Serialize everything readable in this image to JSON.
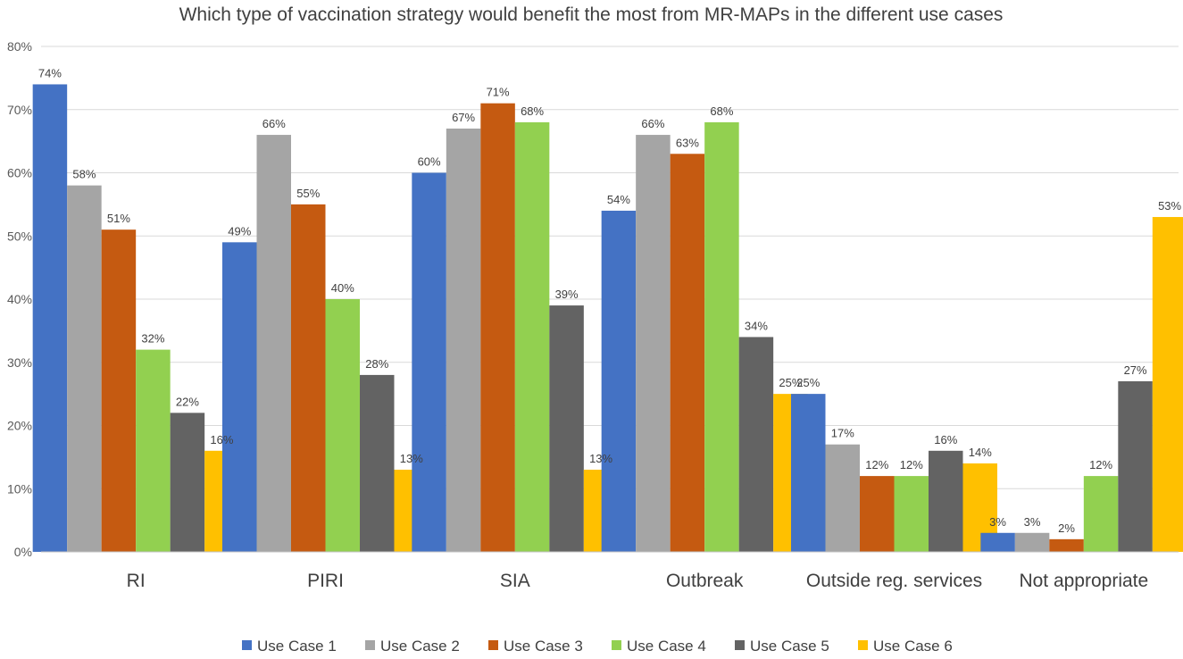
{
  "chart_data": {
    "type": "bar",
    "title": "Which type of vaccination strategy would benefit the most from MR-MAPs in the different use cases",
    "xlabel": "",
    "ylabel": "",
    "ylim": [
      0,
      80
    ],
    "y_ticks": [
      0,
      10,
      20,
      30,
      40,
      50,
      60,
      70,
      80
    ],
    "y_tick_labels": [
      "0%",
      "10%",
      "20%",
      "30%",
      "40%",
      "50%",
      "60%",
      "70%",
      "80%"
    ],
    "grid": true,
    "legend_position": "bottom",
    "categories": [
      "RI",
      "PIRI",
      "SIA",
      "Outbreak",
      "Outside reg. services",
      "Not appropriate"
    ],
    "series": [
      {
        "name": "Use Case 1",
        "color": "#4472C4",
        "values": [
          74,
          49,
          60,
          54,
          25,
          3
        ],
        "labels": [
          "74%",
          "49%",
          "60%",
          "54%",
          "25%",
          "3%"
        ]
      },
      {
        "name": "Use Case 2",
        "color": "#A5A5A5",
        "values": [
          58,
          66,
          67,
          66,
          17,
          3
        ],
        "labels": [
          "58%",
          "66%",
          "67%",
          "66%",
          "17%",
          "3%"
        ]
      },
      {
        "name": "Use Case 3",
        "color": "#C55A11",
        "values": [
          51,
          55,
          71,
          63,
          12,
          2
        ],
        "labels": [
          "51%",
          "55%",
          "71%",
          "63%",
          "12%",
          "2%"
        ]
      },
      {
        "name": "Use Case 4",
        "color": "#92D050",
        "values": [
          32,
          40,
          68,
          68,
          12,
          12
        ],
        "labels": [
          "32%",
          "40%",
          "68%",
          "68%",
          "12%",
          "12%"
        ]
      },
      {
        "name": "Use Case 5",
        "color": "#636363",
        "values": [
          22,
          28,
          39,
          34,
          16,
          27
        ],
        "labels": [
          "22%",
          "28%",
          "39%",
          "34%",
          "16%",
          "27%"
        ]
      },
      {
        "name": "Use Case 6",
        "color": "#FFC000",
        "values": [
          16,
          13,
          13,
          25,
          14,
          53
        ],
        "labels": [
          "16%",
          "13%",
          "13%",
          "25%",
          "14%",
          "53%"
        ]
      }
    ]
  },
  "colors": {
    "gridline": "#D9D9D9",
    "axis_line": "#BFBFBF",
    "text": "#404040"
  }
}
